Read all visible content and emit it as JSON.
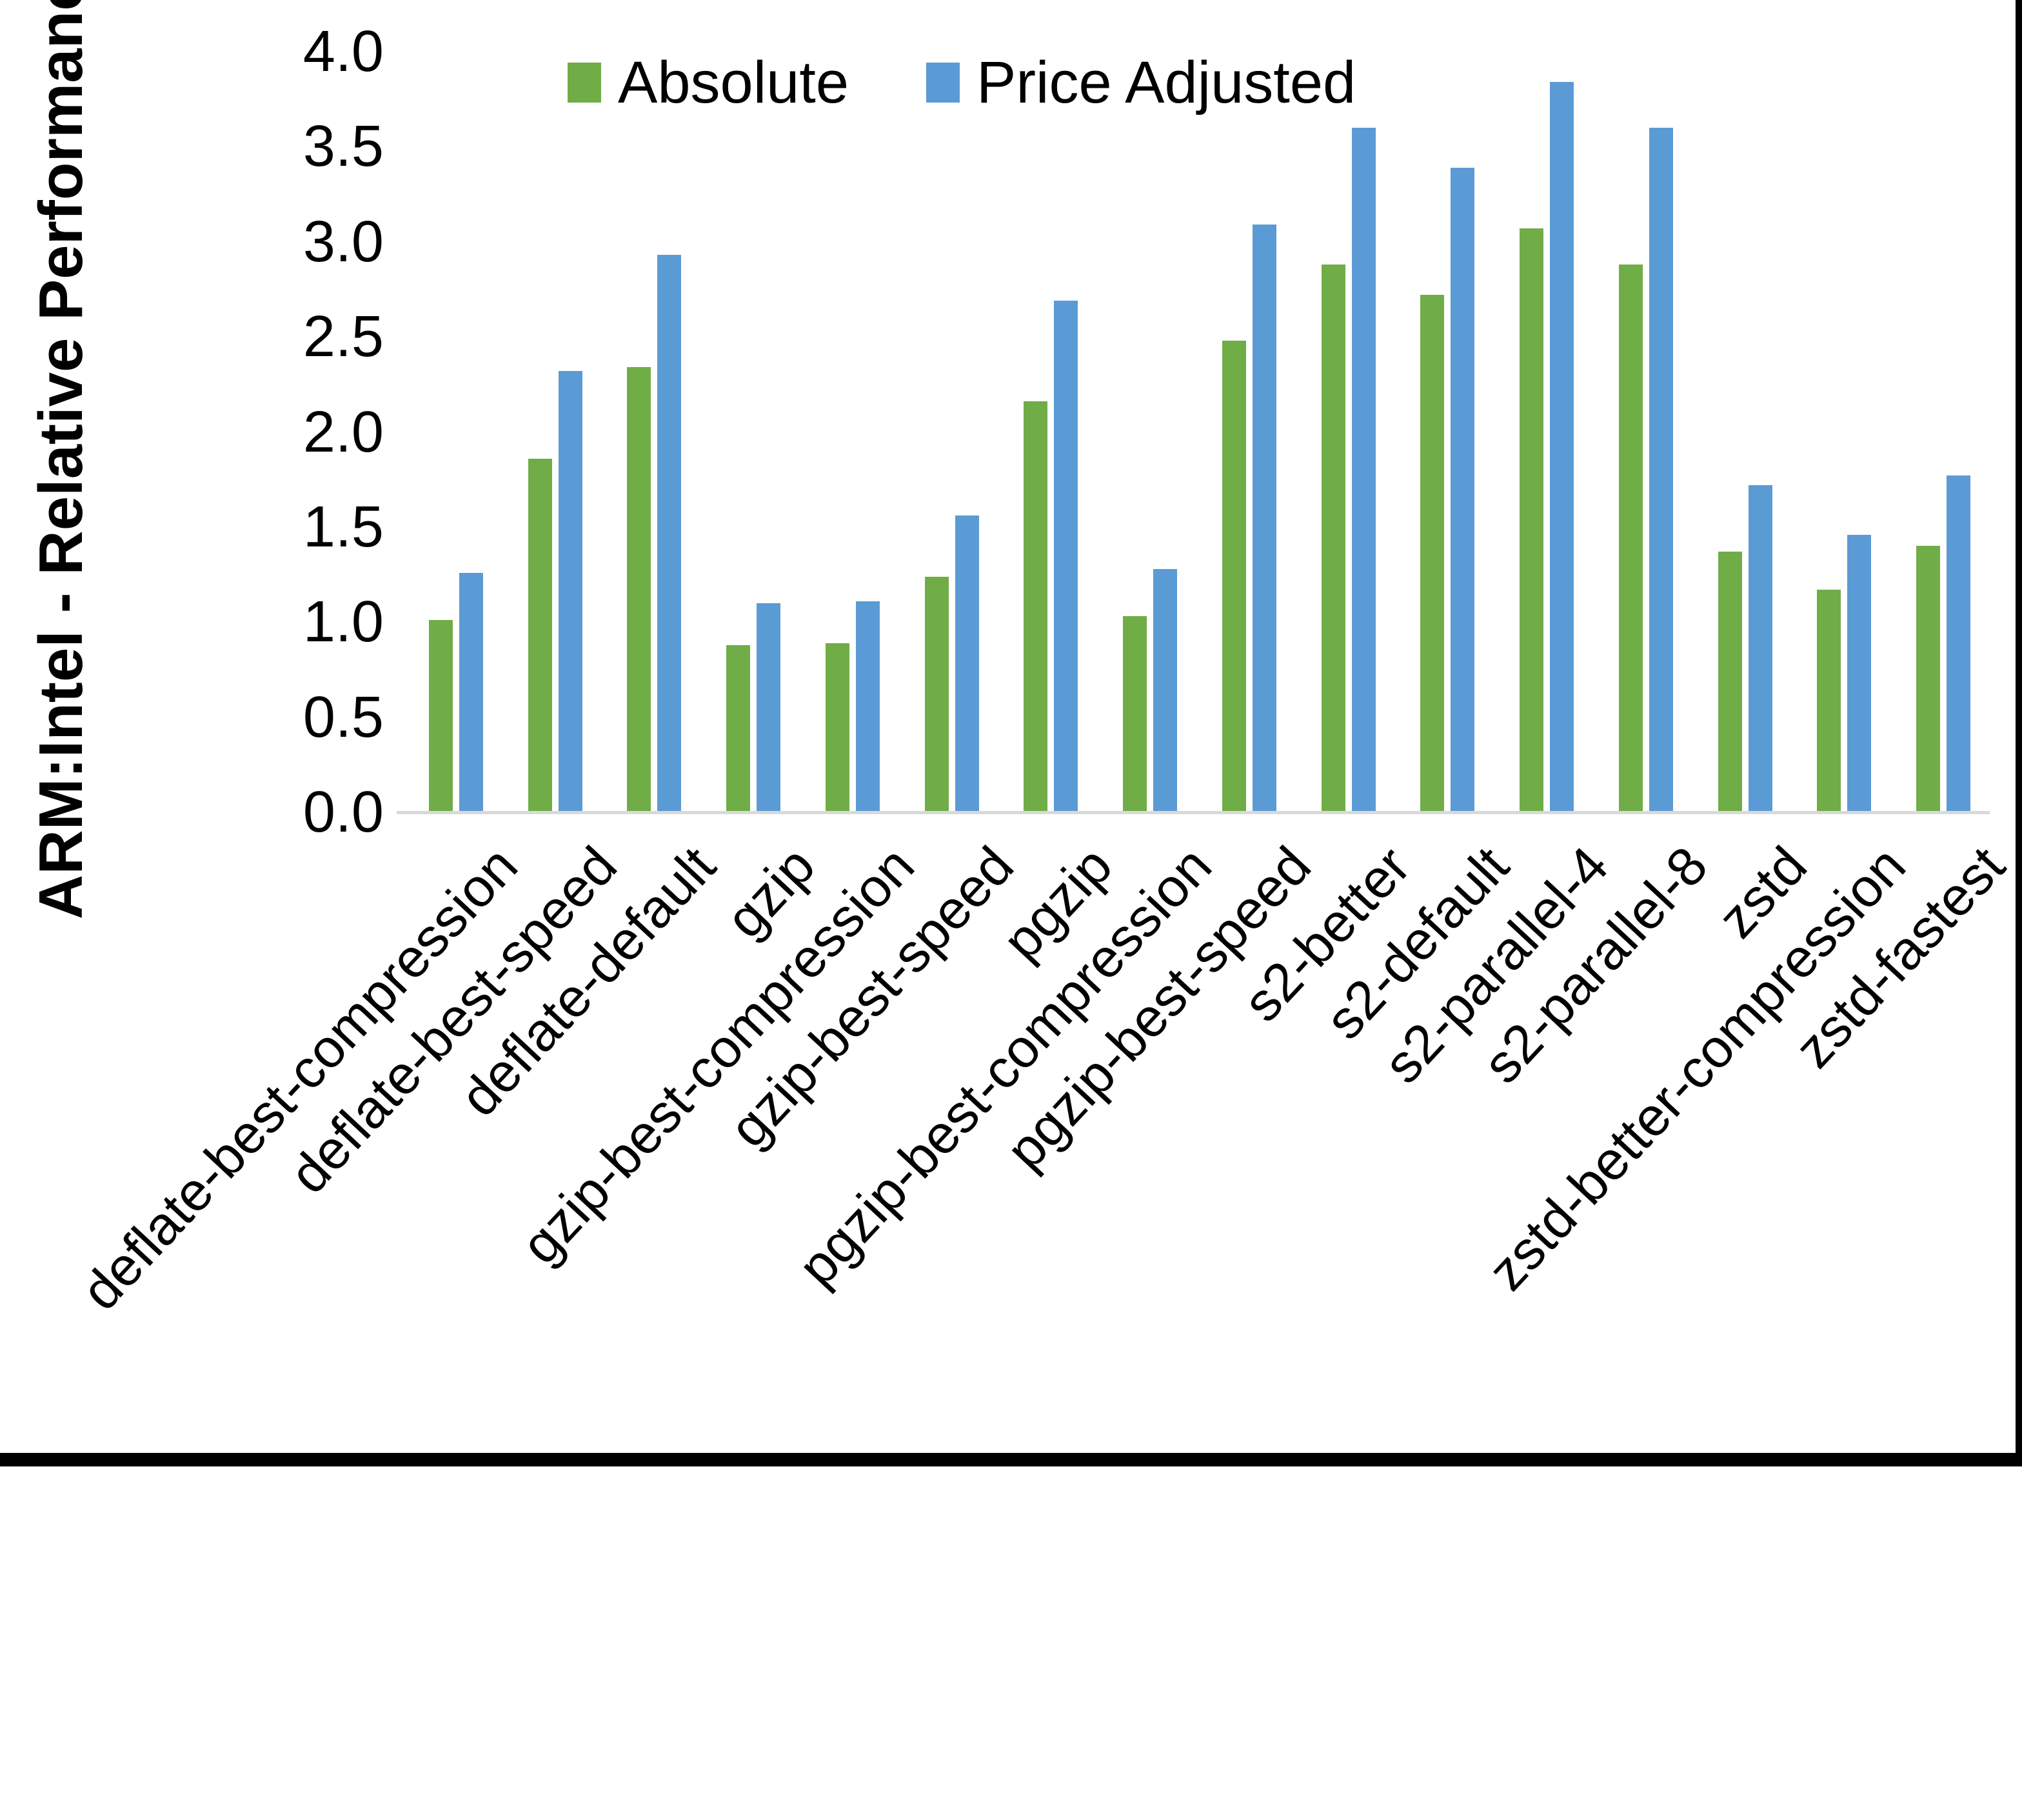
{
  "page": {
    "background": "#ffffff",
    "frame_color": "#000000"
  },
  "chart_data": {
    "type": "bar",
    "title": "",
    "xlabel": "",
    "ylabel": "ARM:Intel - Relative Performance",
    "ylim": [
      0.0,
      4.0
    ],
    "ytick_labels": [
      "0.0",
      "0.5",
      "1.0",
      "1.5",
      "2.0",
      "2.5",
      "3.0",
      "3.5",
      "4.0"
    ],
    "grid": false,
    "legend_position": "top-center",
    "categories": [
      "deflate-best-compression",
      "deflate-best-speed",
      "deflate-default",
      "gzip",
      "gzip-best-compression",
      "gzip-best-speed",
      "pgzip",
      "pgzip-best-compression",
      "pgzip-best-speed",
      "s2-better",
      "s2-default",
      "s2-parallel-4",
      "s2-parallel-8",
      "zstd",
      "zstd-better-compression",
      "zstd-fastest"
    ],
    "series": [
      {
        "name": "Absolute",
        "color": "#70AD47",
        "values": [
          1.01,
          1.86,
          2.34,
          0.88,
          0.89,
          1.24,
          2.16,
          1.03,
          2.48,
          2.88,
          2.72,
          3.07,
          2.88,
          1.37,
          1.17,
          1.4
        ]
      },
      {
        "name": "Price Adjusted",
        "color": "#5B9BD5",
        "values": [
          1.26,
          2.32,
          2.93,
          1.1,
          1.11,
          1.56,
          2.69,
          1.28,
          3.09,
          3.6,
          3.39,
          3.84,
          3.6,
          1.72,
          1.46,
          1.77
        ]
      }
    ]
  },
  "legend": {
    "items": [
      {
        "label": "Absolute",
        "color": "#70AD47"
      },
      {
        "label": "Price Adjusted",
        "color": "#5B9BD5"
      }
    ]
  },
  "axis": {
    "line_color": "#d9d9d9",
    "text_color": "#000000"
  }
}
